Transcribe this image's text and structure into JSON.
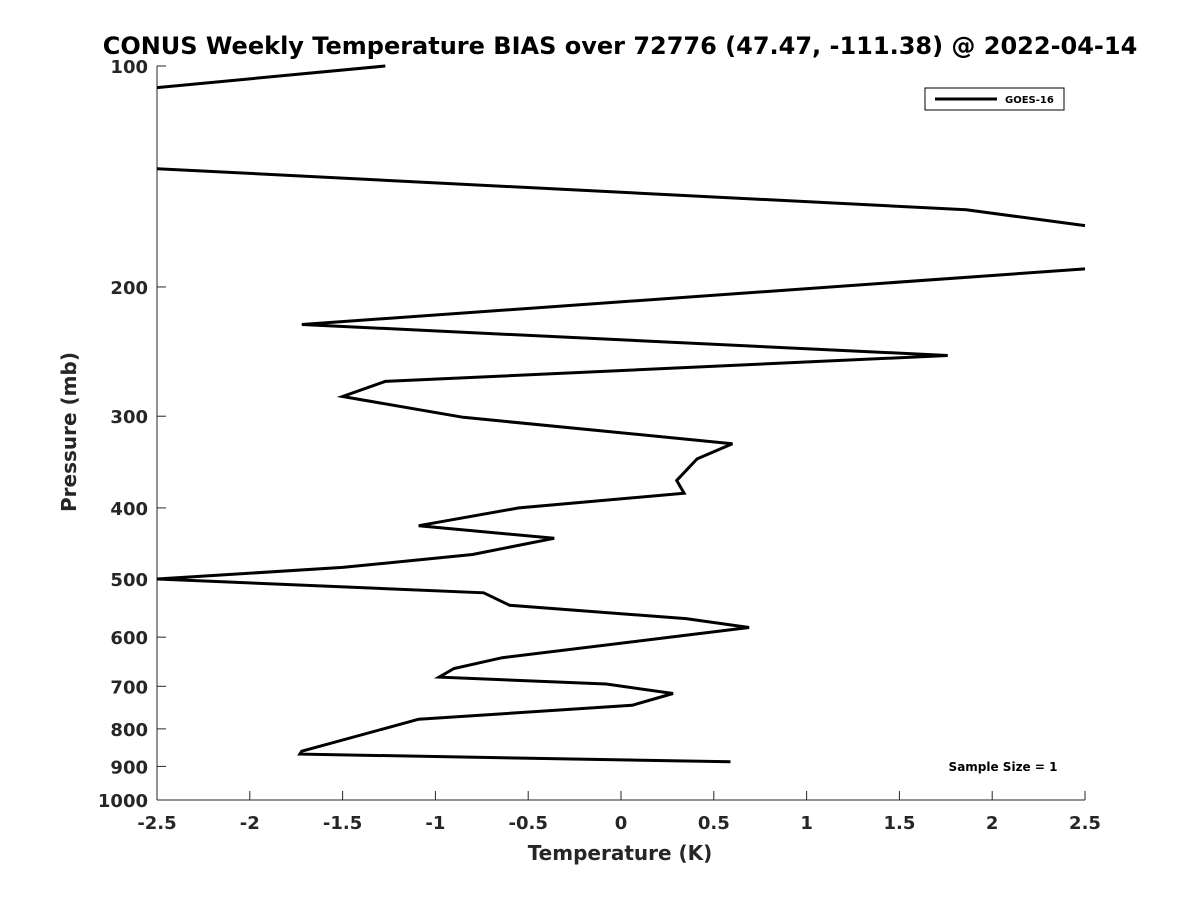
{
  "chart_data": {
    "type": "line",
    "title": "CONUS Weekly Temperature BIAS over 72776 (47.47, -111.38) @ 2022-04-14",
    "xlabel": "Temperature (K)",
    "ylabel": "Pressure (mb)",
    "xlim": [
      -2.5,
      2.5
    ],
    "ylim": [
      100,
      1000
    ],
    "y_scale": "log",
    "y_reversed": true,
    "x_ticks": [
      -2.5,
      -2,
      -1.5,
      -1,
      -0.5,
      0,
      0.5,
      1,
      1.5,
      2,
      2.5
    ],
    "x_tick_labels": [
      "-2.5",
      "-2",
      "-1.5",
      "-1",
      "-0.5",
      "0",
      "0.5",
      "1",
      "1.5",
      "2",
      "2.5"
    ],
    "y_ticks": [
      100,
      200,
      300,
      400,
      500,
      600,
      700,
      800,
      900,
      1000
    ],
    "y_tick_labels": [
      "100",
      "200",
      "300",
      "400",
      "500",
      "600",
      "700",
      "800",
      "900",
      "1000"
    ],
    "grid": false,
    "legend": {
      "position": "top-right",
      "entries": [
        "GOES-16"
      ]
    },
    "annotation": "Sample Size = 1",
    "series": [
      {
        "name": "GOES-16",
        "color": "#000000",
        "segments": [
          [
            {
              "x": -1.27,
              "p": 100
            },
            {
              "x": -2.5,
              "p": 107
            }
          ],
          [
            {
              "x": -2.5,
              "p": 138
            },
            {
              "x": 1.86,
              "p": 157
            },
            {
              "x": 2.5,
              "p": 165
            }
          ],
          [
            {
              "x": 2.5,
              "p": 189
            },
            {
              "x": -1.72,
              "p": 225
            },
            {
              "x": 1.76,
              "p": 248
            },
            {
              "x": -1.27,
              "p": 269
            },
            {
              "x": -1.5,
              "p": 282
            },
            {
              "x": -0.85,
              "p": 301
            },
            {
              "x": 0.6,
              "p": 327
            },
            {
              "x": 0.41,
              "p": 343
            },
            {
              "x": 0.3,
              "p": 367
            },
            {
              "x": 0.34,
              "p": 382
            },
            {
              "x": -0.55,
              "p": 400
            },
            {
              "x": -1.09,
              "p": 423
            },
            {
              "x": -0.36,
              "p": 440
            },
            {
              "x": -0.8,
              "p": 463
            },
            {
              "x": -1.5,
              "p": 482
            },
            {
              "x": -2.5,
              "p": 500
            },
            {
              "x": -0.74,
              "p": 522
            },
            {
              "x": -0.6,
              "p": 543
            },
            {
              "x": 0.35,
              "p": 566
            },
            {
              "x": 0.69,
              "p": 582
            },
            {
              "x": -0.64,
              "p": 640
            },
            {
              "x": -0.9,
              "p": 662
            },
            {
              "x": -0.98,
              "p": 680
            },
            {
              "x": -0.08,
              "p": 695
            },
            {
              "x": 0.28,
              "p": 716
            },
            {
              "x": 0.06,
              "p": 743
            },
            {
              "x": -1.09,
              "p": 776
            },
            {
              "x": -1.72,
              "p": 858
            },
            {
              "x": -1.73,
              "p": 866
            },
            {
              "x": 0.59,
              "p": 887
            }
          ]
        ]
      }
    ]
  }
}
